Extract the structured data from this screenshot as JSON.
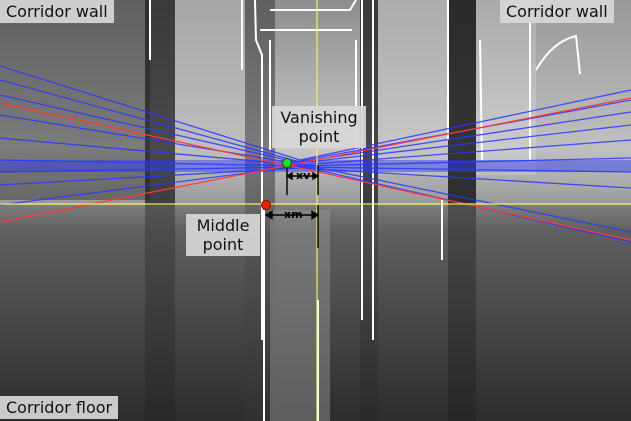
{
  "labels": {
    "wall_left": "Corridor wall",
    "wall_right": "Corridor wall",
    "floor": "Corridor floor",
    "vanishing_point": "Vanishing point",
    "middle_point": "Middle point"
  },
  "measures": {
    "xv": "xv",
    "xm": "xm"
  },
  "colors": {
    "edge_lines": "#2b35ff",
    "dominant_lines": "#ff3a3a",
    "guide_lines": "#f2f060",
    "vanishing_marker": "#22dd22",
    "middle_marker": "#ee2200",
    "edge_contours": "#ffffff"
  }
}
